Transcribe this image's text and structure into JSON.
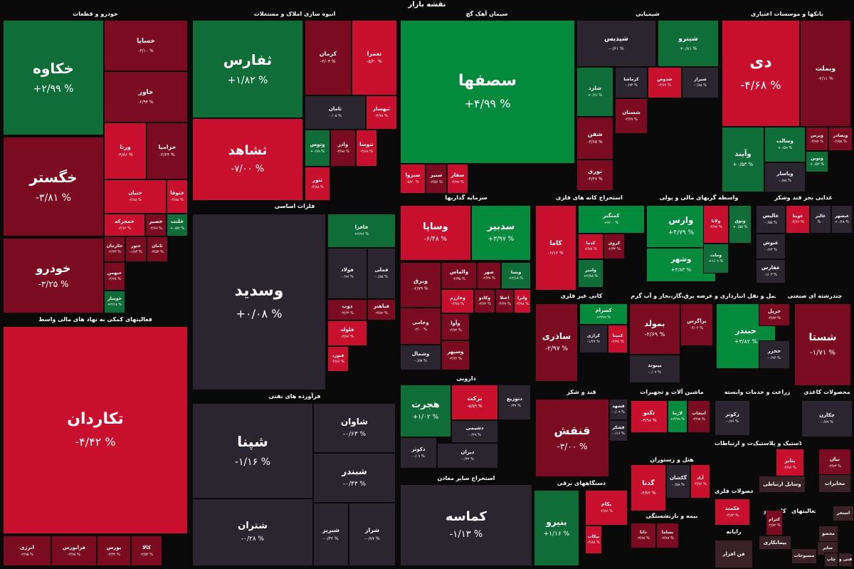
{
  "header": {
    "title": "نقشه بازار"
  },
  "legend_colors": {
    "strong_up": "#048a3c",
    "up": "#0f6e38",
    "flat": "#2b2530",
    "down": "#7b0b20",
    "strong_down": "#c8102e"
  },
  "chart_data": {
    "type": "treemap",
    "title": "نقشه بازار",
    "value_unit": "%",
    "sectors": [
      {
        "name": "خودرو و قطعات"
      },
      {
        "name": "انبوه سازی املاک و مستغلات"
      },
      {
        "name": "سیمان آهک گچ"
      },
      {
        "name": "شیمیایی"
      },
      {
        "name": "بانکها و موسسات اعتباری"
      },
      {
        "name": "فلزات اساسی"
      },
      {
        "name": "سرمایه گذاریها"
      },
      {
        "name": "استخراج کانه های فلزی"
      },
      {
        "name": "واسطه گریهای مالی و پولی"
      },
      {
        "name": "غذایی بجز قند وشکر"
      },
      {
        "name": "فعالیتهای کمکی به نهاد های مالی واسط"
      },
      {
        "name": "کانی غیر فلزی"
      },
      {
        "name": "عرضه برق،گاز،بخار و آب گرم"
      },
      {
        "name": "حمل و نقل انبارداری و"
      },
      {
        "name": "چندرشته ای صنعتی"
      },
      {
        "name": "فرآورده های نفتی"
      },
      {
        "name": "دارویی"
      },
      {
        "name": "قند و شکر"
      },
      {
        "name": "ماشین آلات و تجهیزات"
      },
      {
        "name": "زراعت و خدمات وابسته"
      },
      {
        "name": "محصولات کاغذی"
      },
      {
        "name": "استخراج سایر معادن"
      },
      {
        "name": "هتل و رستوران"
      },
      {
        "name": "لاستیک و پلاستیک"
      },
      {
        "name": "اطلاعات و ارتباطات"
      },
      {
        "name": "محصولات فلزی"
      },
      {
        "name": "دستگاههای برقی"
      },
      {
        "name": "بیمه و بازنشستگی"
      },
      {
        "name": "رایانه"
      },
      {
        "name": "فعالیتهای"
      },
      {
        "name": "کاشی و"
      }
    ],
    "tiles": [
      {
        "symbol": "خکاوه",
        "change": "+۲/۹۹ %",
        "value": 2.99
      },
      {
        "symbol": "خساپا",
        "change": "-۳/۱۰ %",
        "value": -3.1
      },
      {
        "symbol": "خاور",
        "change": "-۲/۹۴ %",
        "value": -2.94
      },
      {
        "symbol": "ورنا",
        "change": "-۴/۸۶ %",
        "value": -4.86
      },
      {
        "symbol": "خزامیا",
        "change": "-۲/۲۳ %",
        "value": -2.23
      },
      {
        "symbol": "خگستر",
        "change": "-۳/۸۱ %",
        "value": -3.81
      },
      {
        "symbol": "خنیان",
        "change": "-۴/۸۸ %",
        "value": -4.88
      },
      {
        "symbol": "ختوقا",
        "change": "-۴/۸۸ %",
        "value": -4.88
      },
      {
        "symbol": "خمحرکه",
        "change": "-۴/۶۲ %",
        "value": -4.62
      },
      {
        "symbol": "خصیر",
        "change": "-۳/۶۷ %",
        "value": -3.67
      },
      {
        "symbol": "خلنت",
        "change": "+۰/۵۲ %",
        "value": 0.52
      },
      {
        "symbol": "خکرمان",
        "change": "-۲/۲۳ %",
        "value": -2.23
      },
      {
        "symbol": "ختور",
        "change": "-۱/۸۴ %",
        "value": -1.84
      },
      {
        "symbol": "ثامان",
        "change": "-۳/۵۳ %",
        "value": -3.53
      },
      {
        "symbol": "خودرو",
        "change": "-۳/۲۵ %",
        "value": -3.25
      },
      {
        "symbol": "خبهمن",
        "change": "-۲/۲۸ %",
        "value": -2.28
      },
      {
        "symbol": "خوساز",
        "change": "+۲/۱۸ %",
        "value": 2.18
      },
      {
        "symbol": "تکاردان",
        "change": "-۴/۴۲ %",
        "value": -4.42
      },
      {
        "symbol": "انرژی",
        "change": "-۳/۹۵ %",
        "value": -3.95
      },
      {
        "symbol": "فرابورس",
        "change": "-۳/۷۸ %",
        "value": -3.78
      },
      {
        "symbol": "بورس",
        "change": "-۳/۳۲ %",
        "value": -3.32
      },
      {
        "symbol": "کالا",
        "change": "-۳/۵۴ %",
        "value": -3.54
      },
      {
        "symbol": "ثفارس",
        "change": "+۱/۸۲ %",
        "value": 1.82
      },
      {
        "symbol": "کرمان",
        "change": "-۴/۰۳ %",
        "value": -4.03
      },
      {
        "symbol": "ثعمرا",
        "change": "-۵/۲۰ %",
        "value": -5.2
      },
      {
        "symbol": "ثامان",
        "change": "-۰/۰۵ %",
        "value": -0.05
      },
      {
        "symbol": "ثبهساز",
        "change": "-۴/۷۸ %",
        "value": -4.78
      },
      {
        "symbol": "ثشاهد",
        "change": "-۷/۰۰ %",
        "value": -7.0
      },
      {
        "symbol": "وتوس",
        "change": "+۰/۹۹ %",
        "value": 0.99
      },
      {
        "symbol": "واذر",
        "change": "-۳/۸۸ %",
        "value": -3.88
      },
      {
        "symbol": "ثتوسا",
        "change": "-۴/۸۹ %",
        "value": -4.89
      },
      {
        "symbol": "ثنور",
        "change": "-۴/۸۸ %",
        "value": -4.88
      },
      {
        "symbol": "سصفها",
        "change": "+۴/۹۹ %",
        "value": 4.99
      },
      {
        "symbol": "سبزوا",
        "change": "-۵/۲۰ %",
        "value": -5.2
      },
      {
        "symbol": "سنیر",
        "change": "-۳/۵۶ %",
        "value": -3.56
      },
      {
        "symbol": "سفار",
        "change": "-۴/۹۷ %",
        "value": -4.97
      },
      {
        "symbol": "شپدیس",
        "change": "-۰/۶۱ %",
        "value": -0.61
      },
      {
        "symbol": "شیترو",
        "change": "+۰/۸۱ %",
        "value": 0.81
      },
      {
        "symbol": "شلرد",
        "change": "+۰/۹۱ %",
        "value": 0.91
      },
      {
        "symbol": "کرماشا",
        "change": "-۰/۷۴ %",
        "value": -0.74
      },
      {
        "symbol": "شدوص",
        "change": "-۴/۶۶ %",
        "value": -4.66
      },
      {
        "symbol": "شیراز",
        "change": "-۰/۸۸ %",
        "value": -0.88
      },
      {
        "symbol": "شستان",
        "change": "-۴/۲۷ %",
        "value": -4.27
      },
      {
        "symbol": "شفن",
        "change": "-۳/۶۵ %",
        "value": -3.65
      },
      {
        "symbol": "نوری",
        "change": "-۴/۲۷ %",
        "value": -4.27
      },
      {
        "symbol": "دی",
        "change": "-۴/۶۸ %",
        "value": -4.68
      },
      {
        "symbol": "وبملت",
        "change": "-۲/۱۱ %",
        "value": -2.11
      },
      {
        "symbol": "وآیند",
        "change": "+۰/۵۳ %",
        "value": 0.53
      },
      {
        "symbol": "وسالت",
        "change": "+۰/۵۹ %",
        "value": 0.59
      },
      {
        "symbol": "وپاسار",
        "change": "-۰/۸۸ %",
        "value": -0.88
      },
      {
        "symbol": "وبرس",
        "change": "-۳/۸۷ %",
        "value": -3.87
      },
      {
        "symbol": "وبصادر",
        "change": "-۲/۵۸ %",
        "value": -2.58
      },
      {
        "symbol": "ونوین",
        "change": "+۰/۵۳ %",
        "value": 0.53
      },
      {
        "symbol": "وسدید",
        "change": "+۰/۰۸ %",
        "value": 0.08
      },
      {
        "symbol": "فافزا",
        "change": "+۲/۹۶ %",
        "value": 2.96
      },
      {
        "symbol": "فولاد",
        "change": "-۰/۹۶ %",
        "value": -0.96
      },
      {
        "symbol": "فملی",
        "change": "-۰/۸۵ %",
        "value": -0.85
      },
      {
        "symbol": "ذوب",
        "change": "-۳/۶۴ %",
        "value": -3.64
      },
      {
        "symbol": "فباهنر",
        "change": "-۳/۸۲ %",
        "value": -3.82
      },
      {
        "symbol": "فلوله",
        "change": "-۴/۸۶ %",
        "value": -4.86
      },
      {
        "symbol": "فنورد",
        "change": "-۴/۸۶ %",
        "value": -4.86
      },
      {
        "symbol": "وساپا",
        "change": "-۶/۴۸ %",
        "value": -6.48
      },
      {
        "symbol": "سدبیر",
        "change": "+۳/۹۷ %",
        "value": 3.97
      },
      {
        "symbol": "وبرق",
        "change": "-۲/۷۹ %",
        "value": -2.79
      },
      {
        "symbol": "والماس",
        "change": "-۲/۳۵ %",
        "value": -2.35
      },
      {
        "symbol": "شهر",
        "change": "-۲/۳۷ %",
        "value": -2.37
      },
      {
        "symbol": "ویسا",
        "change": "+۲/۱۸ %",
        "value": 2.18
      },
      {
        "symbol": "وخارزم",
        "change": "-۴/۷۸ %",
        "value": -4.78
      },
      {
        "symbol": "وکادو",
        "change": "-۳/۶۲ %",
        "value": -3.62
      },
      {
        "symbol": "اعتلا",
        "change": "-۴/۲۷ %",
        "value": -4.27
      },
      {
        "symbol": "وایرا",
        "change": "-۴/۹۸ %",
        "value": -4.98
      },
      {
        "symbol": "وجامی",
        "change": "-۳/۰۰ %",
        "value": -3.0
      },
      {
        "symbol": "وآوا",
        "change": "-۲/۷۲ %",
        "value": -2.72
      },
      {
        "symbol": "وشمال",
        "change": "-۰/۵۷ %",
        "value": -0.57
      },
      {
        "symbol": "وسپهر",
        "change": "-۲/۴۲ %",
        "value": -2.42
      },
      {
        "symbol": "کاما",
        "change": "-۶/۱۶ %",
        "value": -6.16
      },
      {
        "symbol": "کمنگنز",
        "change": "+۷/۰۰ %",
        "value": 7.0
      },
      {
        "symbol": "کدما",
        "change": "-۴/۷۸ %",
        "value": -4.78
      },
      {
        "symbol": "کروی",
        "change": "-۲/۳۲ %",
        "value": -2.32
      },
      {
        "symbol": "وامیر",
        "change": "+۲/۸۸ %",
        "value": 2.88
      },
      {
        "symbol": "وارس",
        "change": "+۴/۷۹ %",
        "value": 4.79
      },
      {
        "symbol": "ولانا",
        "change": "-۴/۹۶ %",
        "value": -4.96
      },
      {
        "symbol": "وثوق",
        "change": "+۰/۵۵ %",
        "value": 0.55
      },
      {
        "symbol": "وشهر",
        "change": "+۴/۸۳ %",
        "value": 4.83
      },
      {
        "symbol": "وملت",
        "change": "+۱/۰۹ %",
        "value": 1.09
      },
      {
        "symbol": "عالیس",
        "change": "-۰/۵۵ %",
        "value": -0.55
      },
      {
        "symbol": "غویتا",
        "change": "-۴/۶۶ %",
        "value": -4.66
      },
      {
        "symbol": "غالبر",
        "change": "% ۰",
        "value": 0
      },
      {
        "symbol": "غبشهر",
        "change": "+۰/۲۸ %",
        "value": 0.28
      },
      {
        "symbol": "غنوش",
        "change": "-۰/۶۳ %",
        "value": -0.63
      },
      {
        "symbol": "غفارس",
        "change": "-۱/۰۳ %",
        "value": -1.03
      },
      {
        "symbol": "ساذری",
        "change": "-۲/۹۷ %",
        "value": -2.97
      },
      {
        "symbol": "کسرام",
        "change": "+۳/۹۹ %",
        "value": 3.99
      },
      {
        "symbol": "کرازی",
        "change": "-۱/۲۷ %",
        "value": -1.27
      },
      {
        "symbol": "کمینا",
        "change": "-۴/۹۶ %",
        "value": -4.96
      },
      {
        "symbol": "بمولد",
        "change": "-۲/۶۹ %",
        "value": -2.69
      },
      {
        "symbol": "بزاگرس",
        "change": "-۴/۰۴ %",
        "value": -4.04
      },
      {
        "symbol": "بیبوند",
        "change": "-۰/۰۷ %",
        "value": -0.07
      },
      {
        "symbol": "حبندر",
        "change": "+۳/۸۲ %",
        "value": 3.82
      },
      {
        "symbol": "حریل",
        "change": "-۳/۸۳ %",
        "value": -3.83
      },
      {
        "symbol": "حخزر",
        "change": "-۰/۹۴ %",
        "value": -0.94
      },
      {
        "symbol": "شستا",
        "change": "-۱/۷۱ %",
        "value": -1.71
      },
      {
        "symbol": "شپنا",
        "change": "-۱/۱۶ %",
        "value": -1.16
      },
      {
        "symbol": "شاوان",
        "change": "-۰/۶۳ %",
        "value": -0.63
      },
      {
        "symbol": "شبندر",
        "change": "-۰/۴۳ %",
        "value": -0.43
      },
      {
        "symbol": "شتران",
        "change": "-۰/۲۸ %",
        "value": -0.28
      },
      {
        "symbol": "شبریز",
        "change": "-۰/۳۲ %",
        "value": -0.32
      },
      {
        "symbol": "شراز",
        "change": "-۰/۷۷ %",
        "value": -0.77
      },
      {
        "symbol": "هجرت",
        "change": "+۱/۰۲ %",
        "value": 1.02
      },
      {
        "symbol": "برکت",
        "change": "-۵/۵۹ %",
        "value": -5.59
      },
      {
        "symbol": "دتوزیع",
        "change": "-۰/۳۷ %",
        "value": -0.37
      },
      {
        "symbol": "دشیمی",
        "change": "-۰/۲۹ %",
        "value": -0.29
      },
      {
        "symbol": "دکوثر",
        "change": "-۰/۰۷ %",
        "value": -0.07
      },
      {
        "symbol": "دیران",
        "change": "-۰/۳۲ %",
        "value": -0.32
      },
      {
        "symbol": "قنقش",
        "change": "-۳/۰۰ %",
        "value": -3.0
      },
      {
        "symbol": "قشهد",
        "change": "-۰/۰۹ %",
        "value": -0.09
      },
      {
        "symbol": "قشکر",
        "change": "-۰/۱۶ %",
        "value": -0.16
      },
      {
        "symbol": "تکنو",
        "change": "-۴/۹۸ %",
        "value": -4.98
      },
      {
        "symbol": "لازما",
        "change": "+۴/۹۹ %",
        "value": 4.99
      },
      {
        "symbol": "انتخاب",
        "change": "-۳/۹۸ %",
        "value": -3.98
      },
      {
        "symbol": "زکوثر",
        "change": "-۰/۷۶ %",
        "value": -0.76
      },
      {
        "symbol": "چکارن",
        "change": "-۰/۷۹ %",
        "value": -0.79
      },
      {
        "symbol": "کماسه",
        "change": "-۱/۱۳ %",
        "value": -1.13
      },
      {
        "symbol": "گدنا",
        "change": "-۴/۷۲ %",
        "value": -4.72
      },
      {
        "symbol": "گکشان",
        "change": "-۰/۵۸ %",
        "value": -0.58
      },
      {
        "symbol": "آباد",
        "change": "-۴/۷۶ %",
        "value": -4.76
      },
      {
        "symbol": "پتایر",
        "change": "-۴/۹۶ %",
        "value": -4.96
      },
      {
        "symbol": "نیان",
        "change": "-۳/۷۳ %",
        "value": -3.73
      },
      {
        "symbol": "وسایل ارتباطی",
        "change": "",
        "value": null
      },
      {
        "symbol": "مخابرات",
        "change": "",
        "value": null
      },
      {
        "symbol": "فکمند",
        "change": "-۴/۸۳ %",
        "value": -4.83
      },
      {
        "symbol": "بنیرو",
        "change": "+۱/۱۶ %",
        "value": 1.16
      },
      {
        "symbol": "بکام",
        "change": "-۴/۸۶ %",
        "value": -4.86
      },
      {
        "symbol": "بپکاب",
        "change": "-۴/۸۸ %",
        "value": -4.88
      },
      {
        "symbol": "دانا",
        "change": "-۳/۸۷ %",
        "value": -3.87
      },
      {
        "symbol": "بساما",
        "change": "-۳/۸۷ %",
        "value": -3.87
      },
      {
        "symbol": "فن افزار",
        "change": "",
        "value": null
      },
      {
        "symbol": "پیمانکاری",
        "change": "",
        "value": null
      },
      {
        "symbol": "کترام",
        "change": "-۲/۸۲ %",
        "value": -2.82
      },
      {
        "symbol": "استخر",
        "change": "",
        "value": null
      },
      {
        "symbol": "محصو",
        "change": "",
        "value": null
      },
      {
        "symbol": "سایر",
        "change": "",
        "value": null
      },
      {
        "symbol": "منسوجات",
        "change": "",
        "value": null
      },
      {
        "symbol": "چاپ",
        "change": "",
        "value": null
      },
      {
        "symbol": "فنی و",
        "change": "",
        "value": null
      }
    ]
  }
}
